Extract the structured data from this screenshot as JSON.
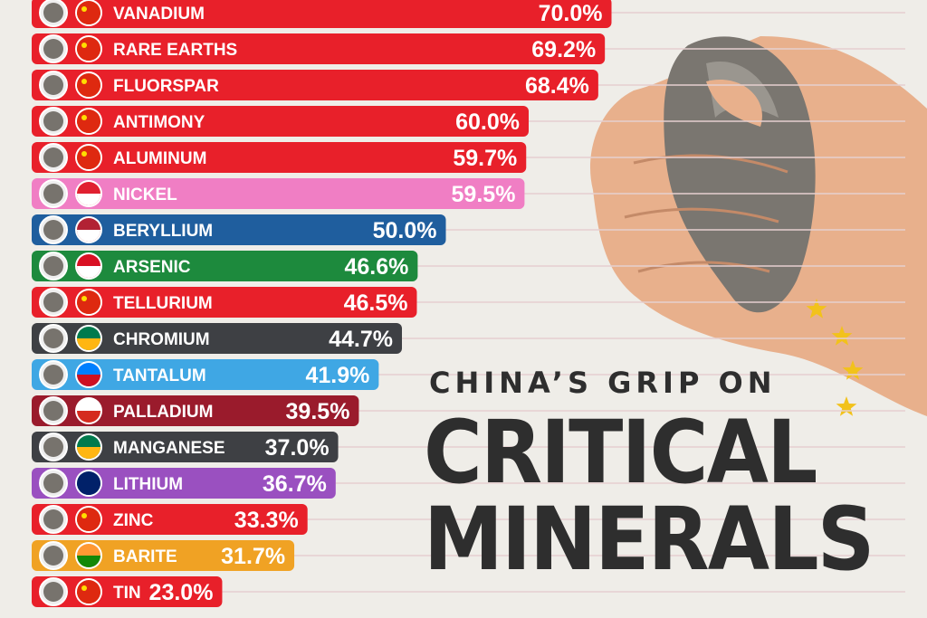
{
  "title": {
    "line1": "CHINA’S GRIP ON",
    "line2": "CRITICAL",
    "line3": "MINERALS"
  },
  "chart_data": {
    "type": "bar",
    "orientation": "horizontal",
    "title": "China’s Grip on Critical Minerals",
    "xlim": [
      0,
      100
    ],
    "categories": [
      "VANADIUM",
      "RARE EARTHS",
      "FLUORSPAR",
      "ANTIMONY",
      "ALUMINUM",
      "NICKEL",
      "BERYLLIUM",
      "ARSENIC",
      "TELLURIUM",
      "CHROMIUM",
      "TANTALUM",
      "PALLADIUM",
      "MANGANESE",
      "LITHIUM",
      "ZINC",
      "BARITE",
      "TIN"
    ],
    "values": [
      70.0,
      69.2,
      68.4,
      60.0,
      59.7,
      59.5,
      50.0,
      46.6,
      46.5,
      44.7,
      41.9,
      39.5,
      37.0,
      36.7,
      33.3,
      31.7,
      23.0
    ],
    "labels": [
      "70.0%",
      "69.2%",
      "68.4%",
      "60.0%",
      "59.7%",
      "59.5%",
      "50.0%",
      "46.6%",
      "46.5%",
      "44.7%",
      "41.9%",
      "39.5%",
      "37.0%",
      "36.7%",
      "33.3%",
      "31.7%",
      "23.0%"
    ],
    "country_flags": [
      "china",
      "china",
      "china",
      "china",
      "china",
      "indonesia",
      "usa",
      "peru",
      "china",
      "south-africa",
      "dr-congo",
      "russia",
      "south-africa",
      "australia",
      "china",
      "india",
      "china"
    ],
    "country_colors": {
      "china": "#e8202a",
      "indonesia": "#f07ec4",
      "usa": "#1f5e9e",
      "peru": "#1d8a3d",
      "south-africa": "#3e4044",
      "dr-congo": "#3fa7e4",
      "russia": "#9a1b2c",
      "australia": "#9a50c0",
      "india": "#f0a224"
    }
  }
}
